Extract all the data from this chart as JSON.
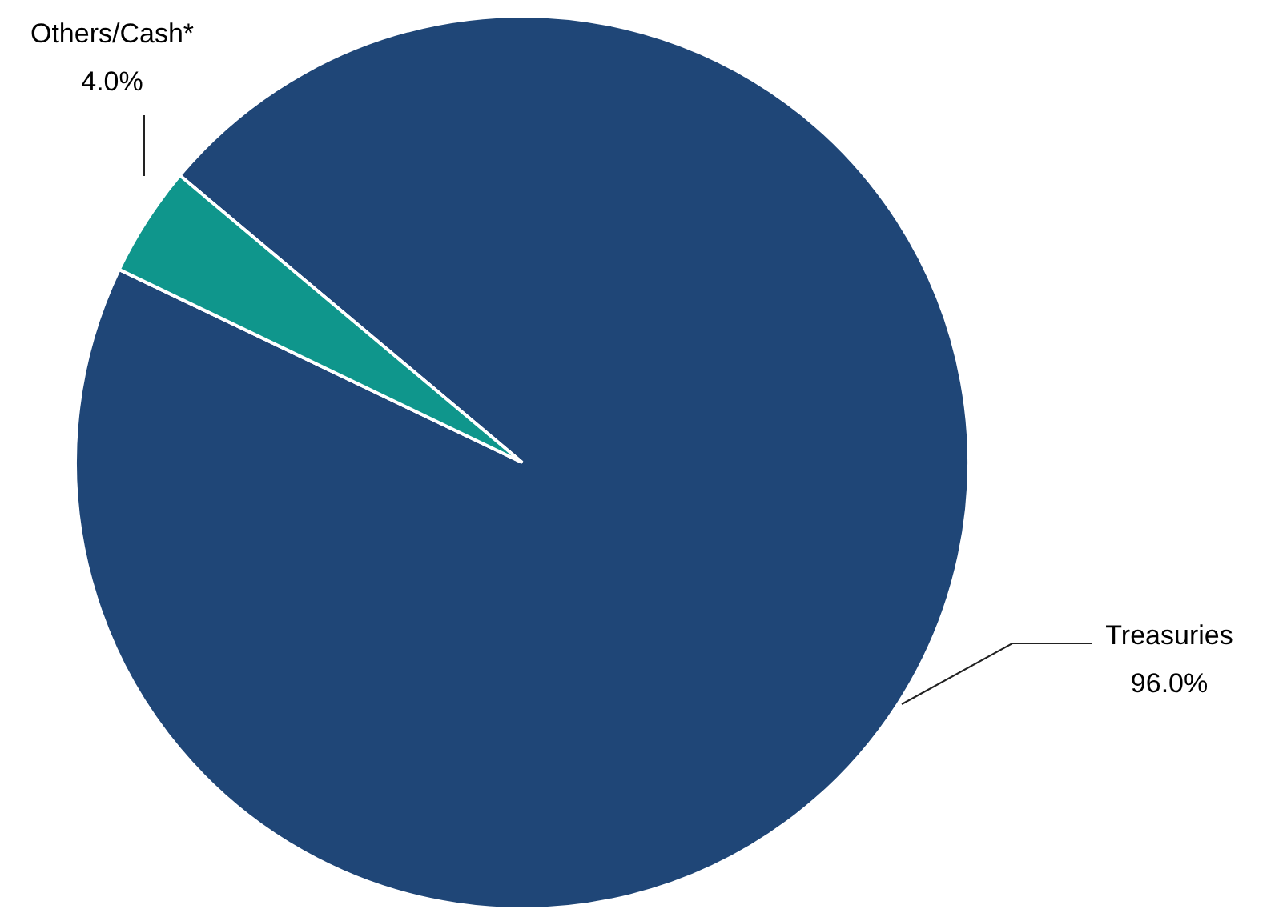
{
  "chart_data": {
    "type": "pie",
    "categories": [
      "Treasuries",
      "Others/Cash*"
    ],
    "values": [
      96,
      4
    ],
    "colors": [
      "#1f4677",
      "#0f968c"
    ],
    "value_labels": [
      "96.0%",
      "4.0%"
    ],
    "legend": false
  }
}
